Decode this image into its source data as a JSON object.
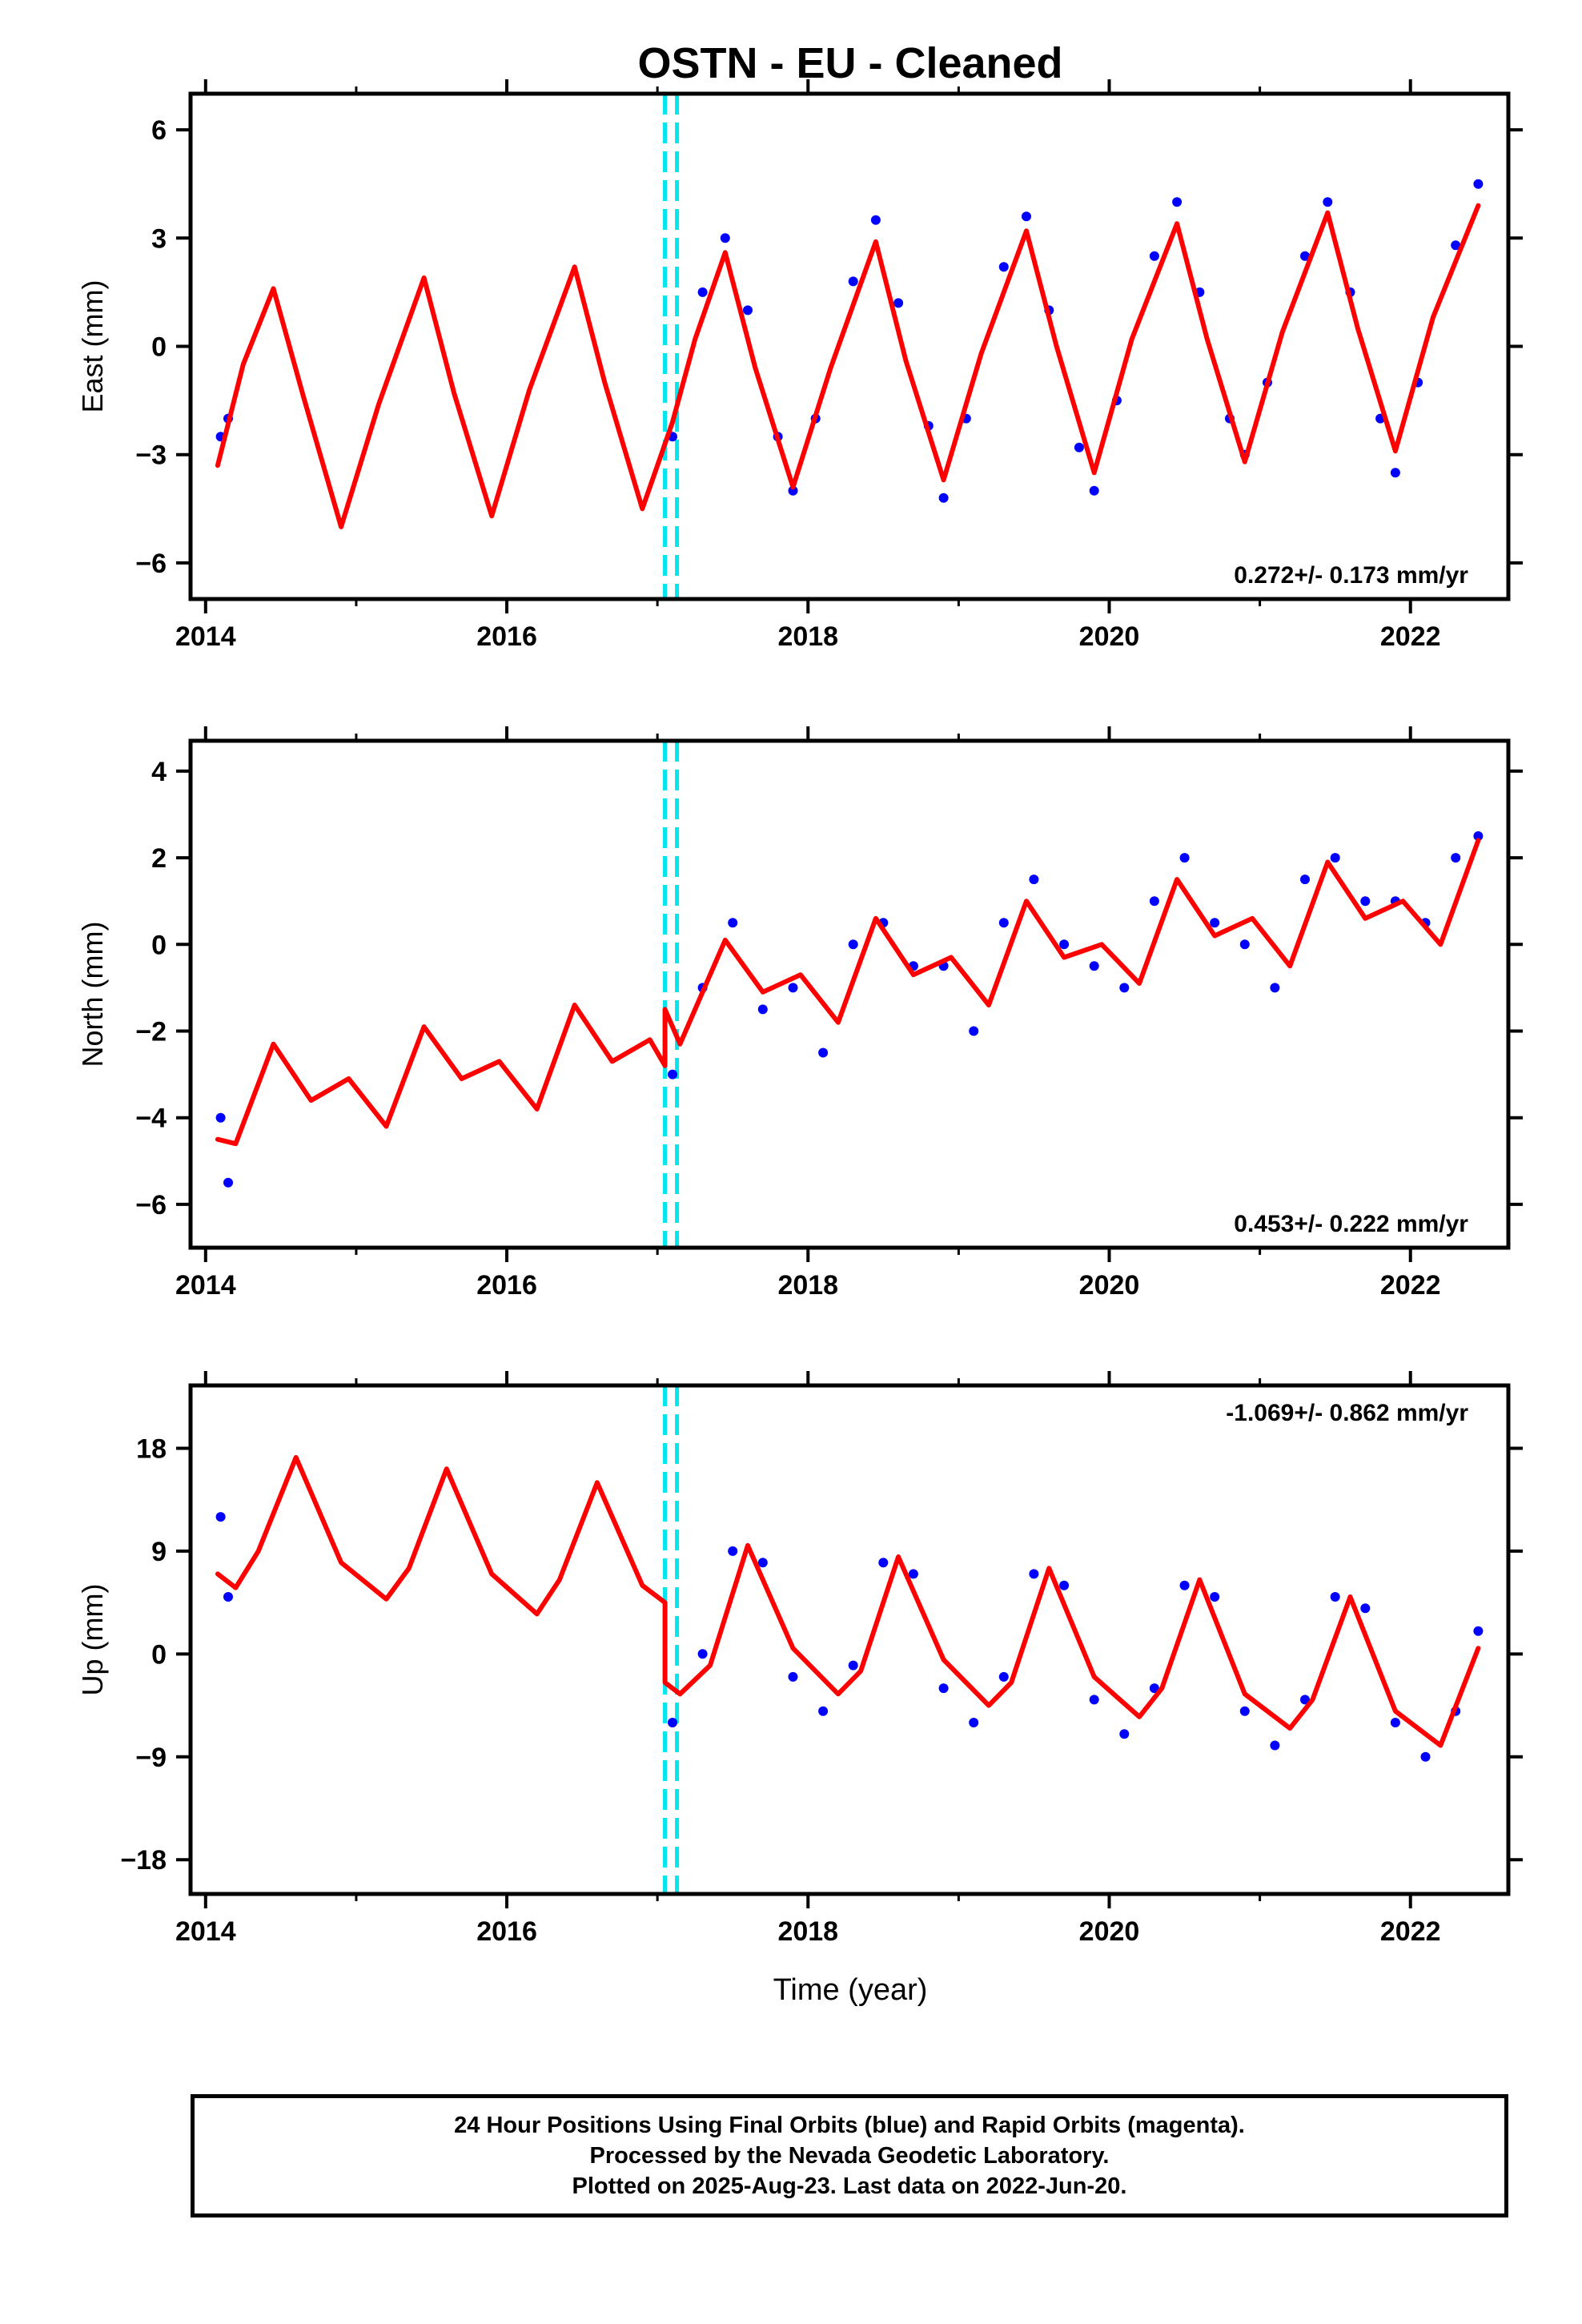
{
  "title": "OSTN  - EU - Cleaned",
  "xlabel": "Time (year)",
  "footer": {
    "line1": "24 Hour Positions Using Final Orbits (blue) and Rapid Orbits (magenta).",
    "line2": "Processed by the Nevada Geodetic Laboratory.",
    "line3": "Plotted on 2025-Aug-23. Last data on 2022-Jun-20."
  },
  "colors": {
    "data": "#0000ff",
    "model": "#ff0000",
    "offset": "#00e5ee"
  },
  "chart_data": [
    {
      "type": "scatter",
      "ylabel": "East (mm)",
      "xlim": [
        2013.9,
        2022.65
      ],
      "ylim": [
        -7,
        7
      ],
      "xticks": [
        2014,
        2016,
        2018,
        2020,
        2022
      ],
      "yticks": [
        -6,
        -3,
        0,
        3,
        6
      ],
      "ytick_labels": [
        "−6",
        "−3",
        "0",
        "3",
        "6"
      ],
      "rate": "0.272+/- 0.173 mm/yr",
      "rate_position": "bottom-right",
      "offsets": [
        2017.05,
        2017.13
      ],
      "model": {
        "x": [
          2014.08,
          2014.25,
          2014.45,
          2014.65,
          2014.9,
          2015.15,
          2015.45,
          2015.65,
          2015.9,
          2016.15,
          2016.45,
          2016.65,
          2016.9,
          2017.0,
          2017.1,
          2017.25,
          2017.45,
          2017.65,
          2017.9,
          2018.15,
          2018.45,
          2018.65,
          2018.9,
          2019.15,
          2019.45,
          2019.65,
          2019.9,
          2020.15,
          2020.45,
          2020.65,
          2020.9,
          2021.15,
          2021.45,
          2021.65,
          2021.9,
          2022.15,
          2022.45
        ],
        "y": [
          -3.3,
          -0.5,
          1.6,
          -1.4,
          -5.0,
          -1.6,
          1.9,
          -1.3,
          -4.7,
          -1.2,
          2.2,
          -1.0,
          -4.5,
          -3.3,
          -2.1,
          0.2,
          2.6,
          -0.6,
          -3.9,
          -0.6,
          2.9,
          -0.4,
          -3.7,
          -0.2,
          3.2,
          0.0,
          -3.5,
          0.2,
          3.4,
          0.2,
          -3.2,
          0.4,
          3.7,
          0.5,
          -2.9,
          0.8,
          3.9
        ]
      },
      "points": {
        "x": [
          2014.1,
          2014.15,
          2017.1,
          2017.3,
          2017.45,
          2017.6,
          2017.8,
          2017.9,
          2018.05,
          2018.3,
          2018.45,
          2018.6,
          2018.8,
          2018.9,
          2019.05,
          2019.3,
          2019.45,
          2019.6,
          2019.8,
          2019.9,
          2020.05,
          2020.3,
          2020.45,
          2020.6,
          2020.8,
          2020.9,
          2021.05,
          2021.3,
          2021.45,
          2021.6,
          2021.8,
          2021.9,
          2022.05,
          2022.3,
          2022.45
        ],
        "y": [
          -2.5,
          -2.0,
          -2.5,
          1.5,
          3.0,
          1.0,
          -2.5,
          -4.0,
          -2.0,
          1.8,
          3.5,
          1.2,
          -2.2,
          -4.2,
          -2.0,
          2.2,
          3.6,
          1.0,
          -2.8,
          -4.0,
          -1.5,
          2.5,
          4.0,
          1.5,
          -2.0,
          -3.0,
          -1.0,
          2.5,
          4.0,
          1.5,
          -2.0,
          -3.5,
          -1.0,
          2.8,
          4.5
        ]
      }
    },
    {
      "type": "scatter",
      "ylabel": "North (mm)",
      "xlim": [
        2013.9,
        2022.65
      ],
      "ylim": [
        -7,
        4.7
      ],
      "xticks": [
        2014,
        2016,
        2018,
        2020,
        2022
      ],
      "yticks": [
        -6,
        -4,
        -2,
        0,
        2,
        4
      ],
      "ytick_labels": [
        "−6",
        "−4",
        "−2",
        "0",
        "2",
        "4"
      ],
      "rate": "0.453+/- 0.222 mm/yr",
      "rate_position": "bottom-right",
      "offsets": [
        2017.05,
        2017.13
      ],
      "model": {
        "x": [
          2014.08,
          2014.2,
          2014.45,
          2014.7,
          2014.95,
          2015.2,
          2015.45,
          2015.7,
          2015.95,
          2016.2,
          2016.45,
          2016.7,
          2016.95,
          2017.05,
          2017.05,
          2017.15,
          2017.45,
          2017.7,
          2017.95,
          2018.2,
          2018.45,
          2018.7,
          2018.95,
          2019.2,
          2019.45,
          2019.7,
          2019.95,
          2020.2,
          2020.45,
          2020.7,
          2020.95,
          2021.2,
          2021.45,
          2021.7,
          2021.95,
          2022.2,
          2022.45
        ],
        "y": [
          -4.5,
          -4.6,
          -2.3,
          -3.6,
          -3.1,
          -4.2,
          -1.9,
          -3.1,
          -2.7,
          -3.8,
          -1.4,
          -2.7,
          -2.2,
          -2.8,
          -1.5,
          -2.3,
          0.1,
          -1.1,
          -0.7,
          -1.8,
          0.6,
          -0.7,
          -0.3,
          -1.4,
          1.0,
          -0.3,
          0.0,
          -0.9,
          1.5,
          0.2,
          0.6,
          -0.5,
          1.9,
          0.6,
          1.0,
          0.0,
          2.4
        ]
      },
      "points": {
        "x": [
          2014.1,
          2014.15,
          2017.1,
          2017.3,
          2017.5,
          2017.7,
          2017.9,
          2018.1,
          2018.3,
          2018.5,
          2018.7,
          2018.9,
          2019.1,
          2019.3,
          2019.5,
          2019.7,
          2019.9,
          2020.1,
          2020.3,
          2020.5,
          2020.7,
          2020.9,
          2021.1,
          2021.3,
          2021.5,
          2021.7,
          2021.9,
          2022.1,
          2022.3,
          2022.45
        ],
        "y": [
          -4.0,
          -5.5,
          -3.0,
          -1.0,
          0.5,
          -1.5,
          -1.0,
          -2.5,
          0.0,
          0.5,
          -0.5,
          -0.5,
          -2.0,
          0.5,
          1.5,
          0.0,
          -0.5,
          -1.0,
          1.0,
          2.0,
          0.5,
          0.0,
          -1.0,
          1.5,
          2.0,
          1.0,
          1.0,
          0.5,
          2.0,
          2.5
        ]
      }
    },
    {
      "type": "scatter",
      "ylabel": "Up (mm)",
      "xlim": [
        2013.9,
        2022.65
      ],
      "ylim": [
        -21,
        23.5
      ],
      "xticks": [
        2014,
        2016,
        2018,
        2020,
        2022
      ],
      "yticks": [
        -18,
        -9,
        0,
        9,
        18
      ],
      "ytick_labels": [
        "−18",
        "−9",
        "0",
        "9",
        "18"
      ],
      "rate": "-1.069+/- 0.862 mm/yr",
      "rate_position": "top-right",
      "offsets": [
        2017.05,
        2017.13
      ],
      "model": {
        "x": [
          2014.08,
          2014.2,
          2014.35,
          2014.6,
          2014.9,
          2015.2,
          2015.35,
          2015.6,
          2015.9,
          2016.2,
          2016.35,
          2016.6,
          2016.9,
          2017.05,
          2017.05,
          2017.15,
          2017.35,
          2017.6,
          2017.9,
          2018.2,
          2018.35,
          2018.6,
          2018.9,
          2019.2,
          2019.35,
          2019.6,
          2019.9,
          2020.2,
          2020.35,
          2020.6,
          2020.9,
          2021.2,
          2021.35,
          2021.6,
          2021.9,
          2022.2,
          2022.45
        ],
        "y": [
          7.0,
          5.8,
          9.0,
          17.2,
          8.0,
          4.8,
          7.5,
          16.2,
          7.0,
          3.5,
          6.5,
          15.0,
          6.0,
          4.5,
          -2.5,
          -3.5,
          -1.0,
          9.5,
          0.5,
          -3.5,
          -1.5,
          8.5,
          -0.5,
          -4.5,
          -2.5,
          7.5,
          -2.0,
          -5.5,
          -3.0,
          6.5,
          -3.5,
          -6.5,
          -4.0,
          5.0,
          -5.0,
          -8.0,
          0.5
        ]
      },
      "points": {
        "x": [
          2014.1,
          2014.15,
          2017.1,
          2017.3,
          2017.5,
          2017.7,
          2017.9,
          2018.1,
          2018.3,
          2018.5,
          2018.7,
          2018.9,
          2019.1,
          2019.3,
          2019.5,
          2019.7,
          2019.9,
          2020.1,
          2020.3,
          2020.5,
          2020.7,
          2020.9,
          2021.1,
          2021.3,
          2021.5,
          2021.7,
          2021.9,
          2022.1,
          2022.3,
          2022.45
        ],
        "y": [
          12.0,
          5.0,
          -6.0,
          0.0,
          9.0,
          8.0,
          -2.0,
          -5.0,
          -1.0,
          8.0,
          7.0,
          -3.0,
          -6.0,
          -2.0,
          7.0,
          6.0,
          -4.0,
          -7.0,
          -3.0,
          6.0,
          5.0,
          -5.0,
          -8.0,
          -4.0,
          5.0,
          4.0,
          -6.0,
          -9.0,
          -5.0,
          2.0
        ]
      }
    }
  ]
}
